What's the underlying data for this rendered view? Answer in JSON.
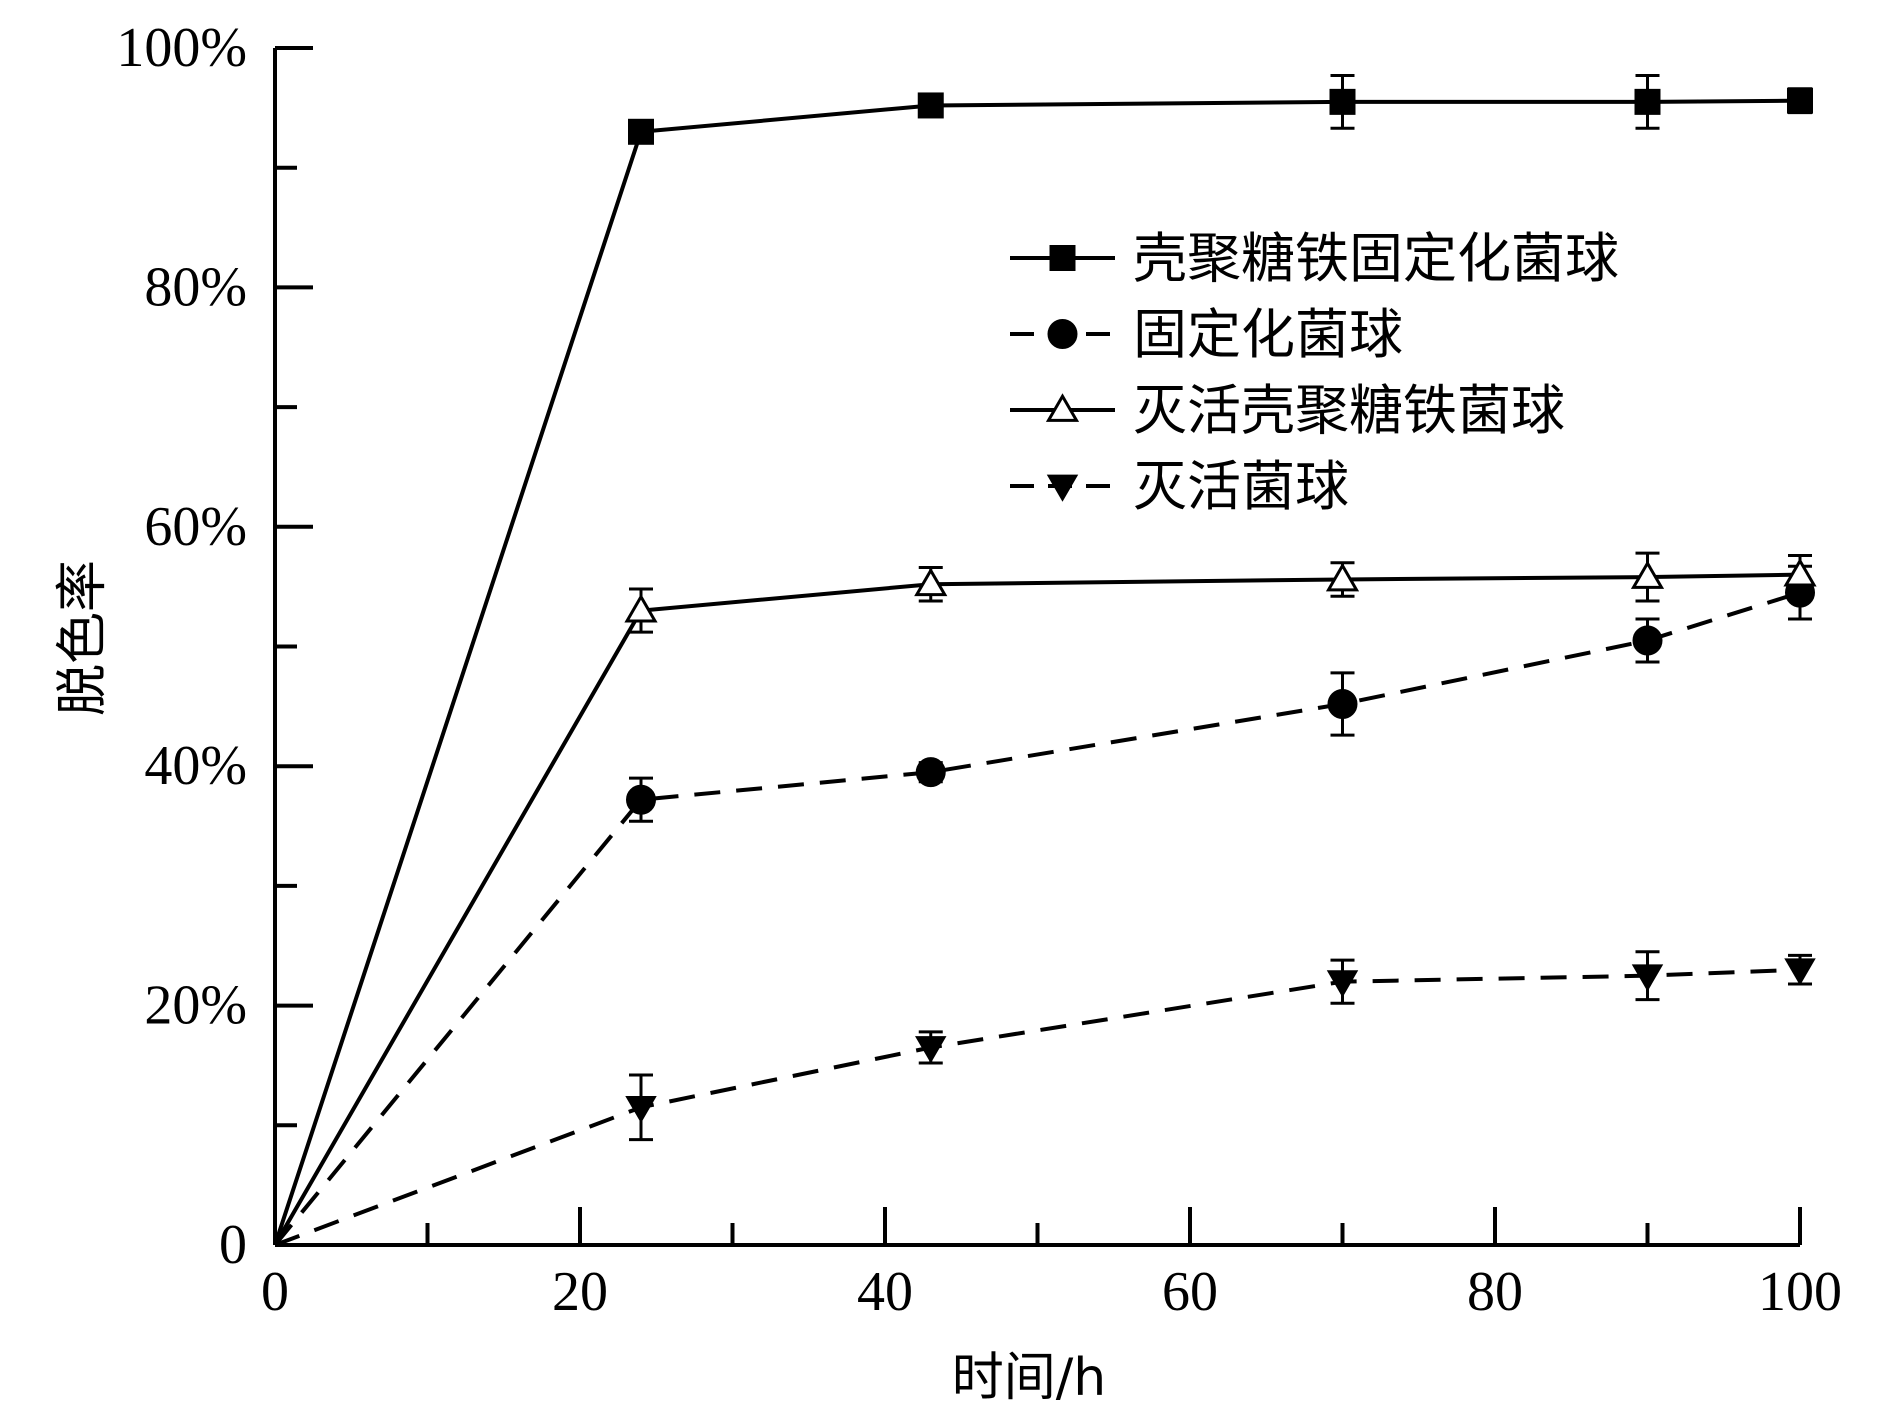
{
  "chart_data": {
    "type": "line",
    "xlabel": "时间/h",
    "ylabel": "脱色率",
    "xlim": [
      0,
      100
    ],
    "ylim": [
      0,
      1
    ],
    "x_ticks_major": [
      0,
      20,
      40,
      60,
      80,
      100
    ],
    "x_ticks_minor": [
      10,
      30,
      50,
      70,
      90
    ],
    "x_tick_labels": [
      "0",
      "20",
      "40",
      "60",
      "80",
      "100"
    ],
    "y_ticks_major": [
      0,
      0.2,
      0.4,
      0.6,
      0.8,
      1.0
    ],
    "y_ticks_minor": [
      0.1,
      0.3,
      0.5,
      0.7,
      0.9
    ],
    "y_tick_labels": [
      "0",
      "20%",
      "40%",
      "60%",
      "80%",
      "100%"
    ],
    "grid": false,
    "legend_position": "top-right",
    "series": [
      {
        "name": "壳聚糖铁固定化菌球",
        "marker": "square-filled",
        "line_style": "solid",
        "color": "#000000",
        "x": [
          0,
          24,
          43,
          70,
          90,
          100
        ],
        "y": [
          0,
          0.93,
          0.952,
          0.955,
          0.955,
          0.956
        ],
        "err": [
          0,
          0.008,
          0.006,
          0.022,
          0.022,
          0.01
        ]
      },
      {
        "name": "固定化菌球",
        "marker": "circle-filled",
        "line_style": "dashed",
        "color": "#000000",
        "x": [
          0,
          24,
          43,
          70,
          90,
          100
        ],
        "y": [
          0,
          0.372,
          0.395,
          0.452,
          0.505,
          0.545
        ],
        "err": [
          0,
          0.018,
          0.008,
          0.026,
          0.018,
          0.022
        ]
      },
      {
        "name": "灭活壳聚糖铁菌球",
        "marker": "triangle-open",
        "line_style": "solid",
        "color": "#000000",
        "x": [
          0,
          24,
          43,
          70,
          90,
          100
        ],
        "y": [
          0,
          0.53,
          0.552,
          0.556,
          0.558,
          0.56
        ],
        "err": [
          0,
          0.018,
          0.014,
          0.014,
          0.02,
          0.016
        ]
      },
      {
        "name": "灭活菌球",
        "marker": "triangle-down-filled",
        "line_style": "dashed",
        "color": "#000000",
        "x": [
          0,
          24,
          43,
          70,
          90,
          100
        ],
        "y": [
          0,
          0.115,
          0.165,
          0.22,
          0.225,
          0.23
        ],
        "err": [
          0,
          0.027,
          0.013,
          0.018,
          0.02,
          0.012
        ]
      }
    ]
  }
}
